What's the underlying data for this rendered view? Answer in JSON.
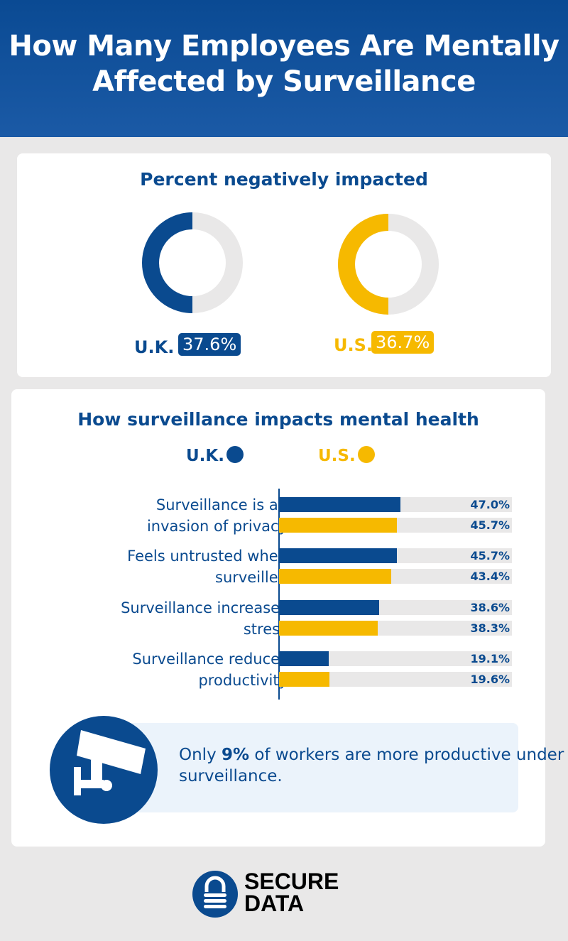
{
  "header": {
    "title": "How Many Employees Are Mentally Affected by Surveillance"
  },
  "colors": {
    "uk": "#0a4a8f",
    "us": "#f6b900",
    "track": "#e9e8e8"
  },
  "donuts": {
    "title": "Percent negatively impacted",
    "items": [
      {
        "label": "U.K.",
        "value": "37.6%"
      },
      {
        "label": "U.S.",
        "value": "36.7%"
      }
    ]
  },
  "chart_data": {
    "type": "bar",
    "title": "How surveillance impacts mental health",
    "legend": [
      "U.K.",
      "U.S."
    ],
    "categories": [
      "Surveillance is an invasion of privacy",
      "Feels untrusted when surveilled",
      "Surveillance increases stress",
      "Surveillance reduces productivity"
    ],
    "category_lines": [
      [
        "Surveillance is an",
        "invasion of privacy"
      ],
      [
        "Feels untrusted when",
        "surveilled"
      ],
      [
        "Surveillance increases",
        "stress"
      ],
      [
        "Surveillance reduces",
        "productivity"
      ]
    ],
    "series": [
      {
        "name": "U.K.",
        "values": [
          47.0,
          45.7,
          38.6,
          19.1
        ]
      },
      {
        "name": "U.S.",
        "values": [
          45.7,
          43.4,
          38.3,
          19.6
        ]
      }
    ],
    "orientation": "horizontal"
  },
  "callout": {
    "prefix": "Only ",
    "highlight": "9%",
    "suffix": " of workers are more productive under surveillance.",
    "icon": "security-camera-icon"
  },
  "logo": {
    "line1": "SECURE",
    "line2": "DATA",
    "icon": "padlock-icon"
  }
}
